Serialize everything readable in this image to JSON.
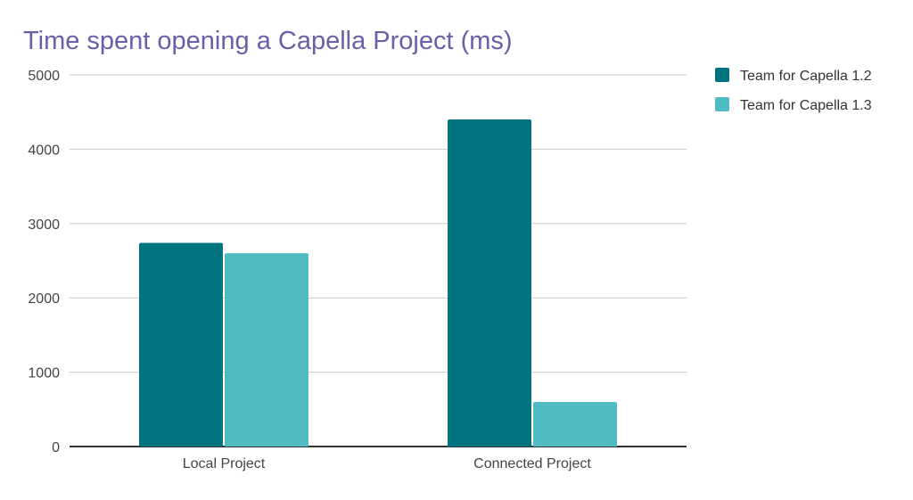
{
  "chart_data": {
    "type": "bar",
    "title": "Time spent opening a Capella Project (ms)",
    "xlabel": "",
    "ylabel": "",
    "categories": [
      "Local Project",
      "Connected Project"
    ],
    "series": [
      {
        "name": "Team for Capella 1.2",
        "values": [
          2740,
          4400
        ],
        "color": "#00747f"
      },
      {
        "name": "Team for Capella 1.3",
        "values": [
          2600,
          600
        ],
        "color": "#4fbbc3"
      }
    ],
    "ylim": [
      0,
      5000
    ],
    "yticks": [
      0,
      1000,
      2000,
      3000,
      4000,
      5000
    ],
    "grid": true,
    "legend_position": "right",
    "title_color": "#6a5fa8"
  }
}
